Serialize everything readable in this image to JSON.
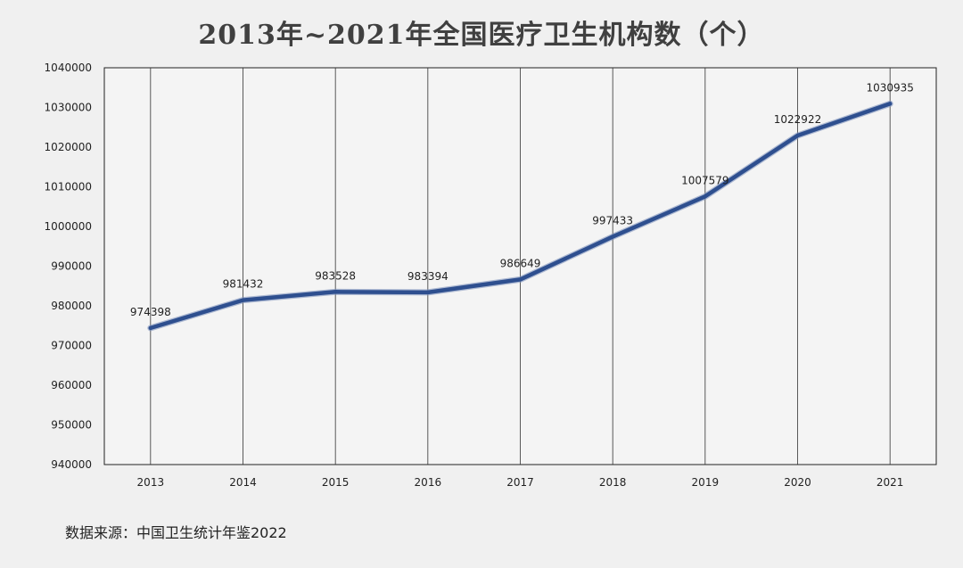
{
  "chart_data": {
    "type": "line",
    "title": "2013年~2021年全国医疗卫生机构数（个）",
    "categories": [
      "2013",
      "2014",
      "2015",
      "2016",
      "2017",
      "2018",
      "2019",
      "2020",
      "2021"
    ],
    "series": [
      {
        "values": [
          974398,
          981432,
          983528,
          983394,
          986649,
          997433,
          1007579,
          1022922,
          1030935
        ],
        "color": "#2e4f8f"
      }
    ],
    "data_labels": [
      "974398",
      "981432",
      "983528",
      "983394",
      "986649",
      "997433",
      "1007579",
      "1022922",
      "1030935"
    ],
    "ylim": [
      940000,
      1040000
    ],
    "y_ticks": [
      "940000",
      "950000",
      "960000",
      "970000",
      "980000",
      "990000",
      "1000000",
      "1010000",
      "1020000",
      "1030000",
      "1040000"
    ],
    "grid": "vertical",
    "legend": "none"
  },
  "footer": {
    "source": "数据来源：中国卫生统计年鉴2022"
  }
}
